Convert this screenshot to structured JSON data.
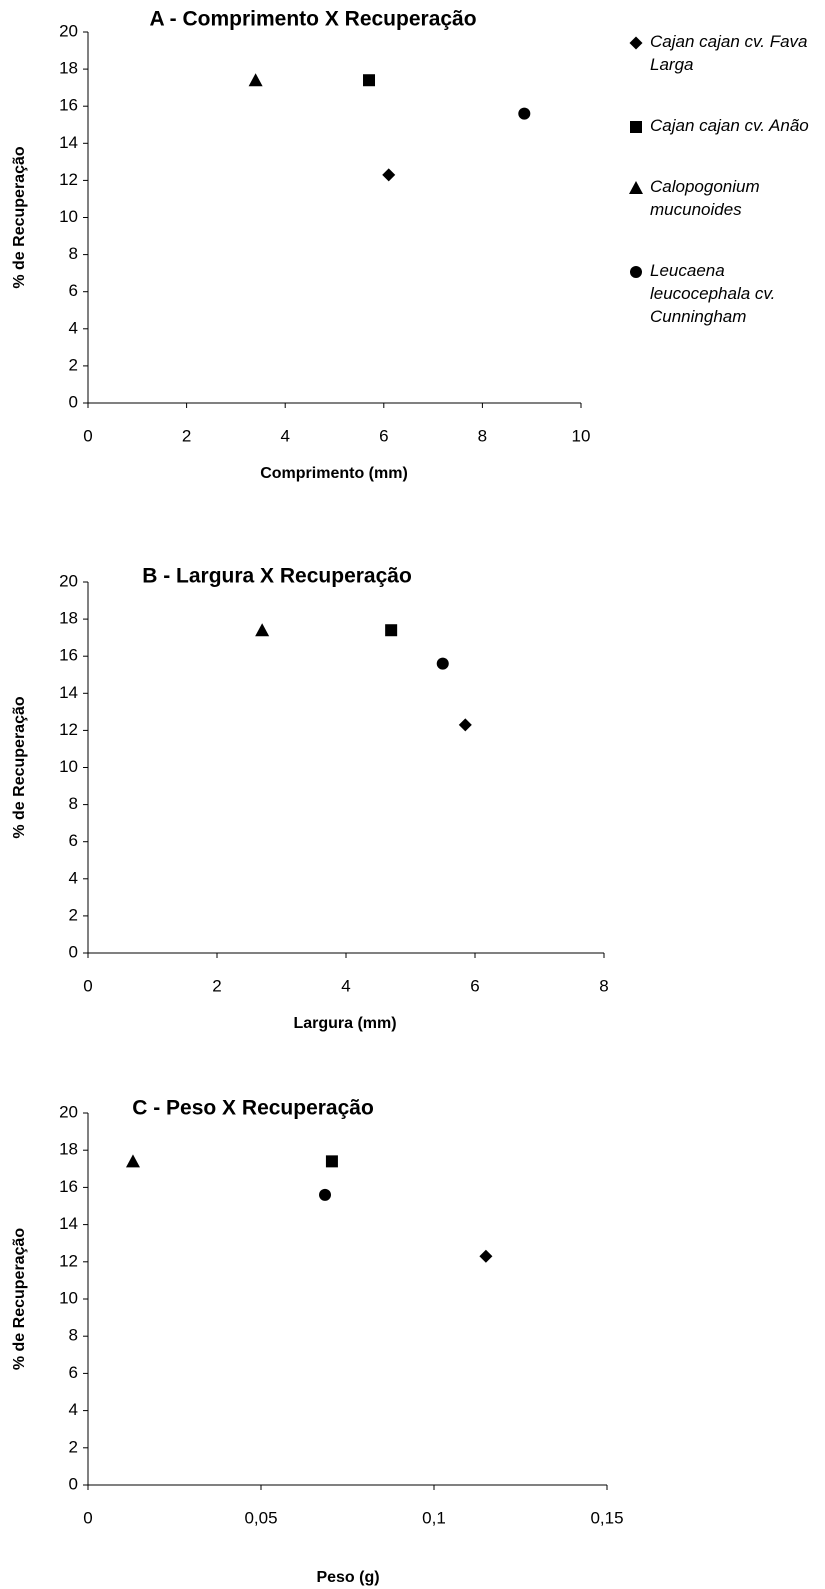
{
  "chart_data": [
    {
      "type": "scatter",
      "title": "A - Comprimento X Recuperação",
      "x_label": "Comprimento (mm)",
      "y_label": "% de Recuperação",
      "xlim": [
        0,
        10
      ],
      "xticks": [
        0,
        2,
        4,
        6,
        8,
        10
      ],
      "ylim": [
        0,
        20
      ],
      "yticks": [
        0,
        2,
        4,
        6,
        8,
        10,
        12,
        14,
        16,
        18,
        20
      ],
      "legend": "right",
      "color": "#000000",
      "series": [
        {
          "name": "Cajan cajan cv. Fava Larga",
          "marker": "diamond",
          "x": [
            6.1
          ],
          "y": [
            12.3
          ]
        },
        {
          "name": "Cajan cajan cv. Anão",
          "marker": "square",
          "x": [
            5.7
          ],
          "y": [
            17.4
          ]
        },
        {
          "name": "Calopogonium mucunoides",
          "marker": "triangle",
          "x": [
            3.4
          ],
          "y": [
            17.4
          ]
        },
        {
          "name": "Leucaena leucocephala cv. Cunningham",
          "marker": "circle",
          "x": [
            8.85
          ],
          "y": [
            15.6
          ]
        }
      ]
    },
    {
      "type": "scatter",
      "title": "B - Largura X Recuperação",
      "x_label": "Largura (mm)",
      "y_label": "% de Recuperação",
      "xlim": [
        0,
        8
      ],
      "xticks": [
        0,
        2,
        4,
        6,
        8
      ],
      "ylim": [
        0,
        20
      ],
      "yticks": [
        0,
        2,
        4,
        6,
        8,
        10,
        12,
        14,
        16,
        18,
        20
      ],
      "color": "#000000",
      "series": [
        {
          "marker": "diamond",
          "x": [
            5.85
          ],
          "y": [
            12.3
          ]
        },
        {
          "marker": "square",
          "x": [
            4.7
          ],
          "y": [
            17.4
          ]
        },
        {
          "marker": "triangle",
          "x": [
            2.7
          ],
          "y": [
            17.4
          ]
        },
        {
          "marker": "circle",
          "x": [
            5.5
          ],
          "y": [
            15.6
          ]
        }
      ]
    },
    {
      "type": "scatter",
      "title": "C - Peso X Recuperação",
      "x_label": "Peso (g)",
      "y_label": "% de Recuperação",
      "xlim": [
        0,
        0.15
      ],
      "xticks": [
        0,
        {
          "value": 0.05,
          "label": "0,05"
        },
        {
          "value": 0.1,
          "label": "0,1"
        },
        {
          "value": 0.15,
          "label": "0,15"
        }
      ],
      "ylim": [
        0,
        20
      ],
      "yticks": [
        0,
        2,
        4,
        6,
        8,
        10,
        12,
        14,
        16,
        18,
        20
      ],
      "color": "#000000",
      "series": [
        {
          "marker": "diamond",
          "x": [
            0.115
          ],
          "y": [
            12.3
          ]
        },
        {
          "marker": "square",
          "x": [
            0.0705
          ],
          "y": [
            17.4
          ]
        },
        {
          "marker": "triangle",
          "x": [
            0.013
          ],
          "y": [
            17.4
          ]
        },
        {
          "marker": "circle",
          "x": [
            0.0685
          ],
          "y": [
            15.6
          ]
        }
      ]
    }
  ]
}
